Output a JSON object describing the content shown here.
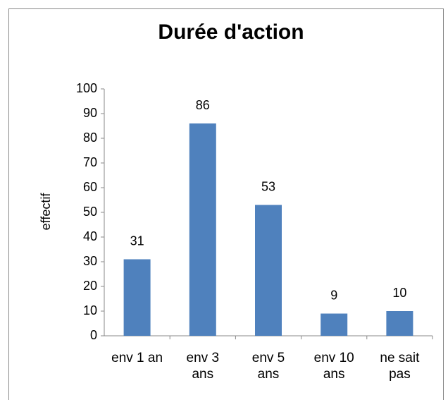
{
  "chart_data": {
    "type": "bar",
    "title": "Durée d'action",
    "y_label": "effectif",
    "categories": [
      "env 1 an",
      "env 3 ans",
      "env 5 ans",
      "env 10 ans",
      "ne sait pas"
    ],
    "values": [
      31,
      86,
      53,
      9,
      10
    ],
    "color": "#4f81bd",
    "ylim": [
      0,
      100
    ],
    "yticks": [
      0,
      10,
      20,
      30,
      40,
      50,
      60,
      70,
      80,
      90,
      100
    ],
    "grid": false
  }
}
